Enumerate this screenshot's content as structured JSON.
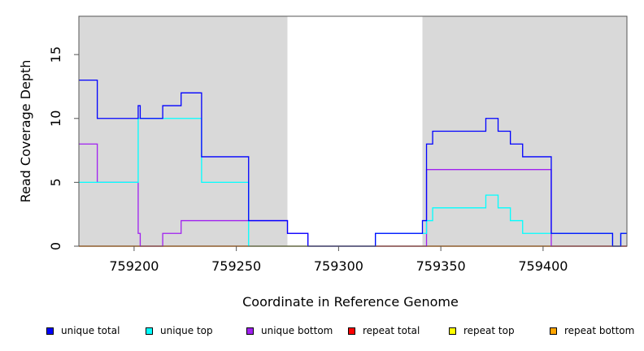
{
  "chart_data": {
    "type": "line",
    "step": true,
    "xlabel": "Coordinate in Reference Genome",
    "ylabel": "Read Coverage Depth",
    "xlim": [
      759173,
      759441
    ],
    "ylim": [
      0,
      18
    ],
    "xticks": [
      759200,
      759250,
      759300,
      759350,
      759400
    ],
    "yticks": [
      0,
      5,
      10,
      15
    ],
    "shaded_regions": [
      [
        759173,
        759275
      ],
      [
        759341,
        759441
      ]
    ],
    "shade_color": "#d9d9d9",
    "series": [
      {
        "name": "unique total",
        "color": "#0000ff",
        "x": [
          759173,
          759182,
          759202,
          759203,
          759214,
          759223,
          759233,
          759256,
          759275,
          759285,
          759318,
          759341,
          759343,
          759346,
          759372,
          759378,
          759384,
          759390,
          759404,
          759434,
          759438,
          759441
        ],
        "y": [
          13,
          10,
          11,
          10,
          11,
          12,
          7,
          2,
          1,
          0,
          1,
          2,
          8,
          9,
          10,
          9,
          8,
          7,
          1,
          0,
          1,
          1
        ]
      },
      {
        "name": "unique top",
        "color": "#00ffff",
        "x": [
          759173,
          759202,
          759233,
          759256,
          759275,
          759285,
          759318,
          759341,
          759343,
          759346,
          759372,
          759378,
          759384,
          759390,
          759404,
          759434,
          759438,
          759441
        ],
        "y": [
          5,
          10,
          5,
          0,
          0,
          0,
          1,
          1,
          2,
          3,
          4,
          3,
          2,
          1,
          1,
          0,
          1,
          1
        ]
      },
      {
        "name": "unique bottom",
        "color": "#a020f0",
        "x": [
          759173,
          759182,
          759202,
          759203,
          759214,
          759223,
          759256,
          759275,
          759285,
          759343,
          759404,
          759441
        ],
        "y": [
          8,
          5,
          1,
          0,
          1,
          2,
          2,
          1,
          0,
          6,
          0,
          0
        ]
      },
      {
        "name": "repeat total",
        "color": "#ff0000",
        "x": [
          759173,
          759441
        ],
        "y": [
          0,
          0
        ]
      },
      {
        "name": "repeat top",
        "color": "#ffff00",
        "x": [
          759173,
          759441
        ],
        "y": [
          0,
          0
        ]
      },
      {
        "name": "repeat bottom",
        "color": "#ffa500",
        "x": [
          759173,
          759441
        ],
        "y": [
          0,
          0
        ]
      }
    ]
  },
  "legend": [
    {
      "label": "unique total",
      "color": "#0000ff"
    },
    {
      "label": "unique top",
      "color": "#00ffff"
    },
    {
      "label": "unique bottom",
      "color": "#a020f0"
    },
    {
      "label": "repeat total",
      "color": "#ff0000"
    },
    {
      "label": "repeat top",
      "color": "#ffff00"
    },
    {
      "label": "repeat bottom",
      "color": "#ffa500"
    }
  ]
}
